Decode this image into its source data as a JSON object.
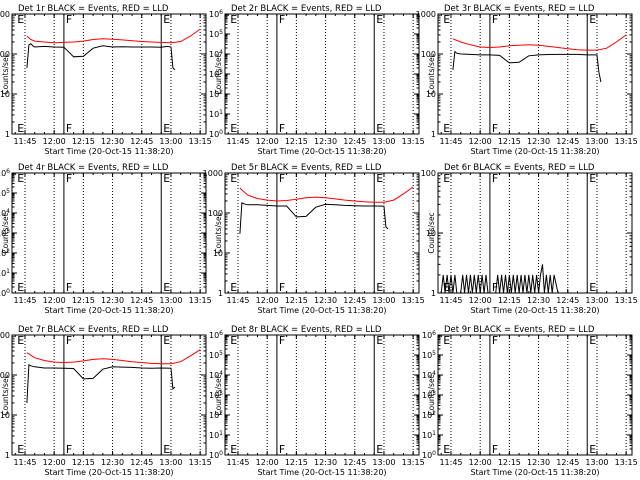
{
  "figure": {
    "xlabel": "Start Time (20-Oct-15 11:38:20)",
    "ylabel": "Counts/sec",
    "x_ticks": [
      "11:45",
      "12:00",
      "12:15",
      "12:30",
      "12:45",
      "13:00",
      "13:15"
    ],
    "colors": {
      "events": "#000000",
      "lld": "#ff0000",
      "axes": "#000000"
    }
  },
  "chart_data": [
    {
      "type": "line",
      "title": "Det 1r BLACK = Events, RED = LLD",
      "yscale": "log",
      "ylim": [
        1,
        1000
      ],
      "xlim": [
        "11:38:20",
        "13:18:00"
      ],
      "y_ticks": [
        "1",
        "10",
        "100",
        "1000"
      ],
      "markers": [
        {
          "label": "E",
          "time": "11:40"
        },
        {
          "label": "F",
          "time": "12:05"
        },
        {
          "label": "E",
          "time": "12:55"
        }
      ],
      "series": [
        {
          "color": "#000000",
          "x": [
            "11:46",
            "11:47",
            "11:48",
            "11:49",
            "11:50",
            "11:55",
            "12:00",
            "12:05",
            "12:10",
            "12:15",
            "12:20",
            "12:25",
            "12:30",
            "12:35",
            "12:40",
            "12:45",
            "12:50",
            "12:55",
            "12:58",
            "13:00",
            "13:01",
            "13:02"
          ],
          "values": [
            45,
            170,
            180,
            160,
            150,
            155,
            150,
            148,
            85,
            88,
            140,
            160,
            150,
            152,
            150,
            150,
            150,
            148,
            155,
            150,
            45,
            40
          ]
        },
        {
          "color": "#ff0000",
          "x": [
            "11:46",
            "11:48",
            "11:50",
            "11:55",
            "12:00",
            "12:05",
            "12:10",
            "12:15",
            "12:20",
            "12:25",
            "12:30",
            "12:35",
            "12:40",
            "12:45",
            "12:50",
            "12:55",
            "13:00",
            "13:05",
            "13:10",
            "13:15"
          ],
          "values": [
            280,
            230,
            210,
            200,
            190,
            195,
            200,
            210,
            230,
            240,
            235,
            225,
            215,
            205,
            200,
            195,
            190,
            205,
            280,
            420
          ]
        }
      ]
    },
    {
      "type": "line",
      "title": "Det 2r BLACK = Events, RED = LLD",
      "yscale": "log",
      "ylim": [
        1,
        1000000
      ],
      "xlim": [
        "11:38:20",
        "13:18:00"
      ],
      "y_ticks": [
        "10^0",
        "10^1",
        "10^2",
        "10^3",
        "10^4",
        "10^5",
        "10^6"
      ],
      "markers": [
        {
          "label": "E",
          "time": "11:40"
        },
        {
          "label": "F",
          "time": "12:05"
        },
        {
          "label": "E",
          "time": "12:55"
        }
      ],
      "series": []
    },
    {
      "type": "line",
      "title": "Det 3r BLACK = Events, RED = LLD",
      "yscale": "log",
      "ylim": [
        1,
        1000
      ],
      "xlim": [
        "11:38:20",
        "13:18:00"
      ],
      "y_ticks": [
        "1",
        "10",
        "100",
        "1000"
      ],
      "markers": [
        {
          "label": "E",
          "time": "11:40"
        },
        {
          "label": "F",
          "time": "12:05"
        },
        {
          "label": "E",
          "time": "12:55"
        }
      ],
      "series": [
        {
          "color": "#000000",
          "x": [
            "11:46",
            "11:47",
            "11:48",
            "11:50",
            "11:55",
            "12:00",
            "12:05",
            "12:10",
            "12:15",
            "12:20",
            "12:25",
            "12:30",
            "12:35",
            "12:40",
            "12:45",
            "12:50",
            "12:55",
            "13:00",
            "13:01",
            "13:02"
          ],
          "values": [
            40,
            115,
            105,
            100,
            98,
            95,
            95,
            92,
            60,
            62,
            90,
            95,
            97,
            98,
            98,
            98,
            95,
            95,
            35,
            20
          ]
        },
        {
          "color": "#ff0000",
          "x": [
            "11:46",
            "11:50",
            "11:55",
            "12:00",
            "12:05",
            "12:10",
            "12:15",
            "12:20",
            "12:25",
            "12:30",
            "12:35",
            "12:40",
            "12:45",
            "12:50",
            "12:55",
            "13:00",
            "13:05",
            "13:10",
            "13:15"
          ],
          "values": [
            240,
            200,
            170,
            150,
            145,
            150,
            160,
            165,
            170,
            165,
            155,
            145,
            135,
            128,
            125,
            125,
            140,
            200,
            300
          ]
        }
      ]
    },
    {
      "type": "line",
      "title": "Det 4r BLACK = Events, RED = LLD",
      "yscale": "log",
      "ylim": [
        1,
        1000000
      ],
      "xlim": [
        "11:38:20",
        "13:18:00"
      ],
      "y_ticks": [
        "10^0",
        "10^1",
        "10^2",
        "10^3",
        "10^4",
        "10^5",
        "10^6"
      ],
      "markers": [
        {
          "label": "E",
          "time": "11:40"
        },
        {
          "label": "F",
          "time": "12:05"
        },
        {
          "label": "E",
          "time": "12:55"
        }
      ],
      "series": []
    },
    {
      "type": "line",
      "title": "Det 5r BLACK = Events, RED = LLD",
      "yscale": "log",
      "ylim": [
        1,
        1000
      ],
      "xlim": [
        "11:38:20",
        "13:18:00"
      ],
      "y_ticks": [
        "1",
        "10",
        "100",
        "1000"
      ],
      "markers": [
        {
          "label": "E",
          "time": "11:40"
        },
        {
          "label": "F",
          "time": "12:05"
        },
        {
          "label": "E",
          "time": "12:55"
        }
      ],
      "series": [
        {
          "color": "#000000",
          "x": [
            "11:46",
            "11:47",
            "11:48",
            "11:50",
            "11:55",
            "12:00",
            "12:05",
            "12:10",
            "12:15",
            "12:20",
            "12:25",
            "12:30",
            "12:35",
            "12:40",
            "12:45",
            "12:50",
            "12:55",
            "13:00",
            "13:01",
            "13:02"
          ],
          "values": [
            30,
            180,
            170,
            160,
            160,
            155,
            150,
            150,
            80,
            82,
            140,
            165,
            160,
            155,
            152,
            150,
            150,
            148,
            45,
            40
          ]
        },
        {
          "color": "#ff0000",
          "x": [
            "11:46",
            "11:50",
            "11:55",
            "12:00",
            "12:05",
            "12:10",
            "12:15",
            "12:20",
            "12:25",
            "12:30",
            "12:35",
            "12:40",
            "12:45",
            "12:50",
            "12:55",
            "13:00",
            "13:05",
            "13:10",
            "13:15"
          ],
          "values": [
            420,
            280,
            230,
            210,
            200,
            205,
            220,
            240,
            250,
            240,
            225,
            210,
            200,
            190,
            185,
            185,
            210,
            300,
            450
          ]
        }
      ]
    },
    {
      "type": "line",
      "title": "Det 6r BLACK = Events, RED = LLD",
      "yscale": "log",
      "ylim": [
        1,
        100
      ],
      "xlim": [
        "11:38:20",
        "13:18:00"
      ],
      "y_ticks": [
        "1",
        "10",
        "100"
      ],
      "markers": [
        {
          "label": "E",
          "time": "11:40"
        },
        {
          "label": "F",
          "time": "12:05"
        },
        {
          "label": "E",
          "time": "12:55"
        }
      ],
      "series": [
        {
          "color": "#000000",
          "x": [
            "11:40",
            "11:41",
            "11:42",
            "11:43",
            "11:44",
            "11:45",
            "11:46",
            "11:47",
            "11:48",
            "11:50",
            "11:51",
            "11:52",
            "11:53",
            "11:54",
            "11:55",
            "11:56",
            "11:57",
            "11:58",
            "11:59",
            "12:00",
            "12:01",
            "12:02",
            "12:03",
            "12:04",
            "12:05",
            "12:08",
            "12:09",
            "12:10",
            "12:11",
            "12:12",
            "12:13",
            "12:14",
            "12:15",
            "12:16",
            "12:17",
            "12:18",
            "12:19",
            "12:20",
            "12:21",
            "12:22",
            "12:23",
            "12:24",
            "12:25",
            "12:26",
            "12:27",
            "12:28",
            "12:29",
            "12:30",
            "12:31",
            "12:32",
            "12:33",
            "12:34",
            "12:35",
            "12:36",
            "12:37",
            "12:38",
            "12:40"
          ],
          "values": [
            1,
            2,
            1,
            2,
            1,
            2,
            1,
            2,
            1,
            1,
            2,
            1,
            2,
            1,
            2,
            1,
            2,
            1,
            2,
            1,
            2,
            1,
            2,
            1,
            1,
            1,
            2,
            1,
            2,
            1,
            2,
            1,
            2,
            1,
            2,
            1,
            2,
            1,
            2,
            1,
            2,
            1,
            2,
            1,
            2,
            1,
            2,
            1,
            2,
            3,
            1,
            2,
            1,
            2,
            1,
            2,
            1
          ]
        }
      ]
    },
    {
      "type": "line",
      "title": "Det 7r BLACK = Events, RED = LLD",
      "yscale": "log",
      "ylim": [
        1,
        1000
      ],
      "xlim": [
        "11:38:20",
        "13:18:00"
      ],
      "y_ticks": [
        "1",
        "10",
        "100",
        "1000"
      ],
      "markers": [
        {
          "label": "E",
          "time": "11:40"
        },
        {
          "label": "F",
          "time": "12:05"
        },
        {
          "label": "E",
          "time": "12:55"
        }
      ],
      "series": [
        {
          "color": "#000000",
          "x": [
            "11:46",
            "11:47",
            "11:48",
            "11:50",
            "11:55",
            "12:00",
            "12:05",
            "12:10",
            "12:15",
            "12:20",
            "12:25",
            "12:30",
            "12:35",
            "12:40",
            "12:45",
            "12:50",
            "12:55",
            "13:00",
            "13:01",
            "13:02"
          ],
          "values": [
            20,
            180,
            170,
            160,
            150,
            150,
            148,
            145,
            80,
            82,
            140,
            160,
            158,
            155,
            150,
            148,
            150,
            148,
            45,
            50
          ]
        },
        {
          "color": "#ff0000",
          "x": [
            "11:46",
            "11:50",
            "11:55",
            "12:00",
            "12:05",
            "12:10",
            "12:15",
            "12:20",
            "12:25",
            "12:30",
            "12:35",
            "12:40",
            "12:45",
            "12:50",
            "12:55",
            "13:00",
            "13:05",
            "13:10",
            "13:15"
          ],
          "values": [
            360,
            270,
            230,
            210,
            205,
            210,
            225,
            245,
            255,
            245,
            230,
            215,
            205,
            195,
            190,
            190,
            215,
            300,
            430
          ]
        }
      ]
    },
    {
      "type": "line",
      "title": "Det 8r BLACK = Events, RED = LLD",
      "yscale": "log",
      "ylim": [
        1,
        1000000
      ],
      "xlim": [
        "11:38:20",
        "13:18:00"
      ],
      "y_ticks": [
        "10^0",
        "10^1",
        "10^2",
        "10^3",
        "10^4",
        "10^5",
        "10^6"
      ],
      "markers": [
        {
          "label": "E",
          "time": "11:40"
        },
        {
          "label": "F",
          "time": "12:05"
        },
        {
          "label": "E",
          "time": "12:55"
        }
      ],
      "series": []
    },
    {
      "type": "line",
      "title": "Det 9r BLACK = Events, RED = LLD",
      "yscale": "log",
      "ylim": [
        1,
        1000000
      ],
      "xlim": [
        "11:38:20",
        "13:18:00"
      ],
      "y_ticks": [
        "10^0",
        "10^1",
        "10^2",
        "10^3",
        "10^4",
        "10^5",
        "10^6"
      ],
      "markers": [
        {
          "label": "E",
          "time": "11:40"
        },
        {
          "label": "F",
          "time": "12:05"
        },
        {
          "label": "E",
          "time": "12:55"
        }
      ],
      "series": []
    }
  ]
}
